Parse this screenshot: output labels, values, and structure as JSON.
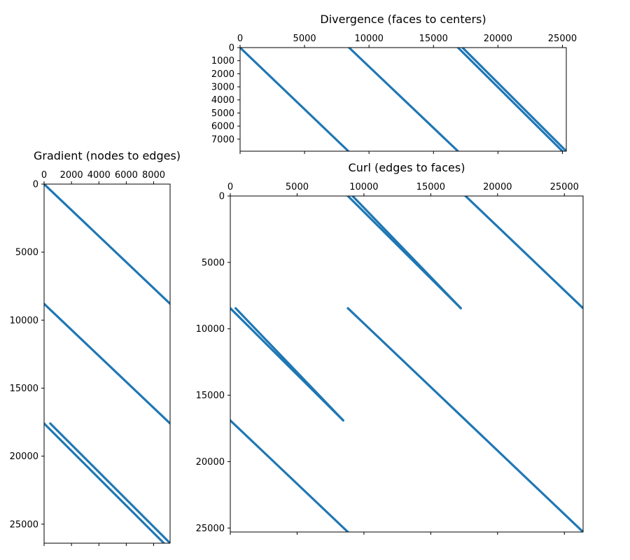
{
  "chart_data": [
    {
      "id": "divergence",
      "type": "scatter",
      "title": "Divergence (faces to centers)",
      "xlabel": "",
      "ylabel": "",
      "xlim": [
        0,
        25300
      ],
      "ylim": [
        7920,
        0
      ],
      "x_ticks": [
        0,
        5000,
        10000,
        15000,
        20000,
        25000
      ],
      "y_ticks": [
        0,
        1000,
        2000,
        3000,
        4000,
        5000,
        6000,
        7000
      ],
      "x_ticks_position": "top",
      "grid": false,
      "color": "#1f77b4",
      "bands": [
        {
          "x": [
            0,
            8400
          ],
          "y": [
            0,
            7920
          ]
        },
        {
          "x": [
            8450,
            16900
          ],
          "y": [
            0,
            7920
          ]
        },
        {
          "x": [
            16900,
            25000
          ],
          "y": [
            0,
            7920
          ]
        },
        {
          "x": [
            17250,
            25300
          ],
          "y": [
            0,
            7920
          ]
        }
      ]
    },
    {
      "id": "gradient",
      "type": "scatter",
      "title": "Gradient (nodes to edges)",
      "xlabel": "",
      "ylabel": "",
      "xlim": [
        0,
        9200
      ],
      "ylim": [
        26400,
        0
      ],
      "x_ticks": [
        0,
        2000,
        4000,
        6000,
        8000
      ],
      "y_ticks": [
        0,
        5000,
        10000,
        15000,
        20000,
        25000
      ],
      "x_ticks_position": "top",
      "grid": false,
      "color": "#1f77b4",
      "bands": [
        {
          "x": [
            0,
            9200
          ],
          "y": [
            0,
            8800
          ]
        },
        {
          "x": [
            0,
            9200
          ],
          "y": [
            8800,
            17600
          ]
        },
        {
          "x": [
            0,
            8750
          ],
          "y": [
            17600,
            26400
          ]
        },
        {
          "x": [
            450,
            9200
          ],
          "y": [
            17600,
            26400
          ]
        }
      ]
    },
    {
      "id": "curl",
      "type": "scatter",
      "title": "Curl (edges to faces)",
      "xlabel": "",
      "ylabel": "",
      "xlim": [
        0,
        26400
      ],
      "ylim": [
        25300,
        0
      ],
      "x_ticks": [
        0,
        5000,
        10000,
        15000,
        20000,
        25000
      ],
      "y_ticks": [
        0,
        5000,
        10000,
        15000,
        20000,
        25000
      ],
      "x_ticks_position": "top",
      "grid": false,
      "color": "#1f77b4",
      "bands": [
        {
          "x": [
            8800,
            17250
          ],
          "y": [
            0,
            8450
          ]
        },
        {
          "x": [
            9150,
            17250
          ],
          "y": [
            0,
            8450
          ]
        },
        {
          "x": [
            17600,
            26400
          ],
          "y": [
            0,
            8450
          ]
        },
        {
          "x": [
            0,
            8450
          ],
          "y": [
            8450,
            16900
          ]
        },
        {
          "x": [
            400,
            8450
          ],
          "y": [
            8450,
            16900
          ]
        },
        {
          "x": [
            8800,
            26400
          ],
          "y": [
            8450,
            25300
          ]
        },
        {
          "x": [
            0,
            8800
          ],
          "y": [
            16900,
            25300
          ]
        }
      ]
    }
  ]
}
